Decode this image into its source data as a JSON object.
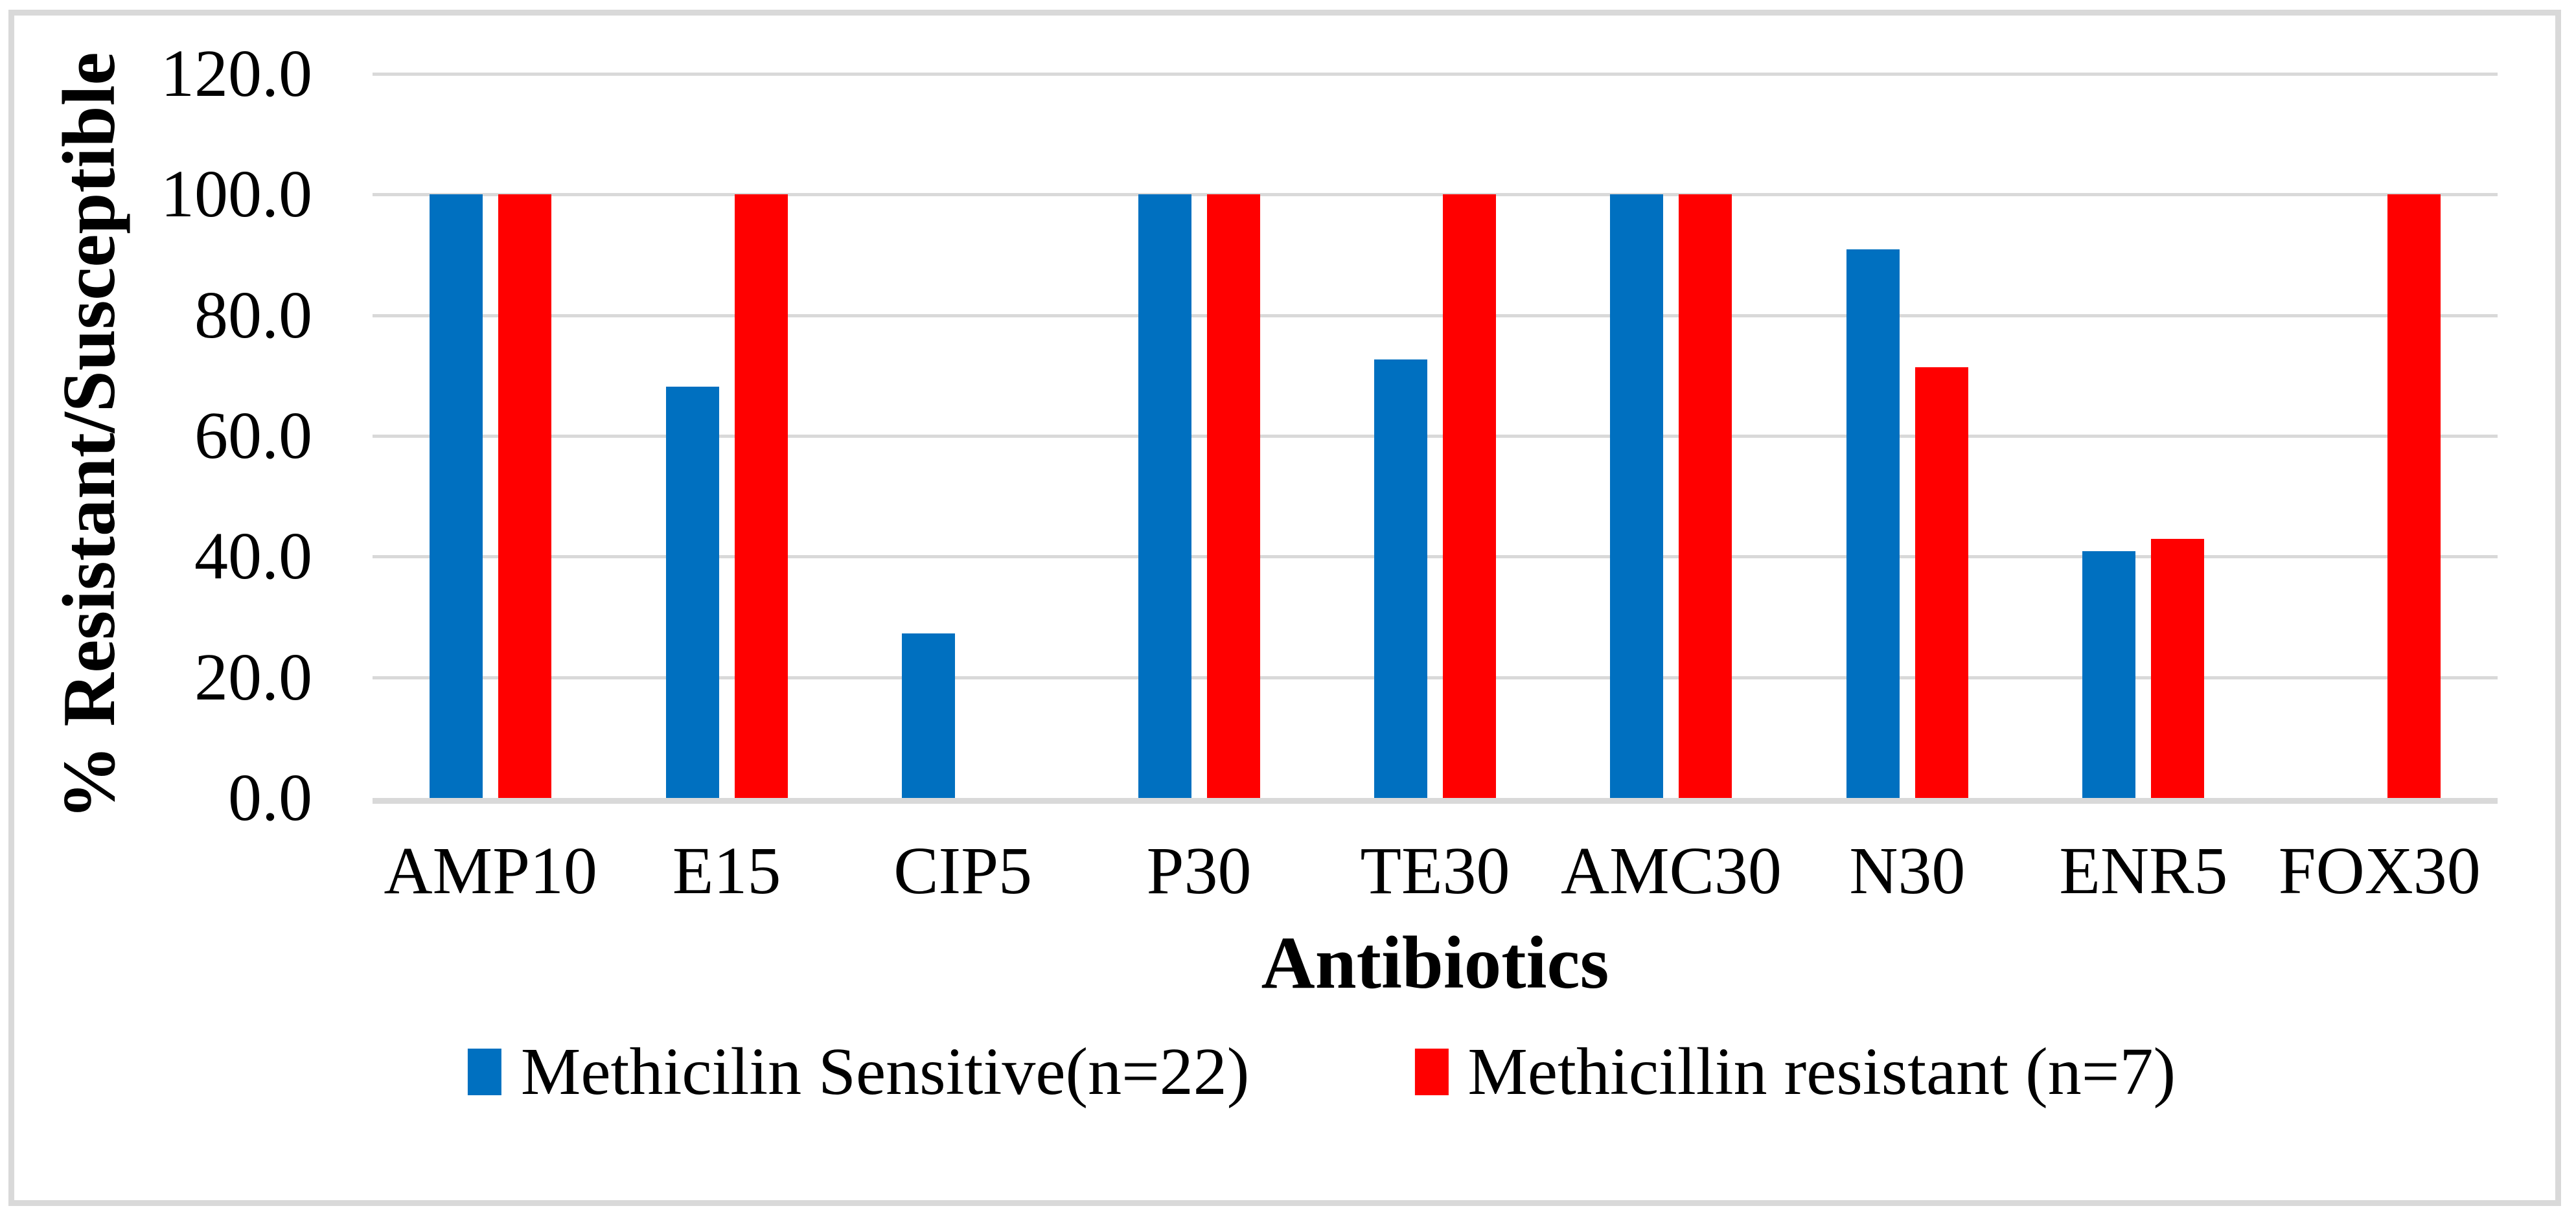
{
  "chart_data": {
    "type": "bar",
    "title": "",
    "categories": [
      "AMP10",
      "E15",
      "CIP5",
      "P30",
      "TE30",
      "AMC30",
      "N30",
      "ENR5",
      "FOX30"
    ],
    "series": [
      {
        "name": "Methicilin Sensitive(n=22)",
        "color": "#0070C0",
        "values": [
          100.0,
          68.2,
          27.3,
          100.0,
          72.7,
          100.0,
          90.9,
          40.9,
          0.0
        ]
      },
      {
        "name": "Methicillin resistant (n=7)",
        "color": "#FF0000",
        "values": [
          100.0,
          100.0,
          0.0,
          100.0,
          100.0,
          100.0,
          71.4,
          42.9,
          100.0
        ]
      }
    ],
    "xlabel": "Antibiotics",
    "ylabel": "% Resistant/Susceptible",
    "ylim": [
      0,
      120
    ],
    "ytick_step": 20,
    "ytick_labels": [
      "0.0",
      "20.0",
      "40.0",
      "60.0",
      "80.0",
      "100.0",
      "120.0"
    ],
    "grid": "horizontal",
    "legend_position": "bottom"
  },
  "colors": {
    "background": "#FFFFFF",
    "gridline": "#D9D9D9",
    "axis_line": "#D9D9D9",
    "border": "#D9D9D9",
    "text": "#000000"
  }
}
